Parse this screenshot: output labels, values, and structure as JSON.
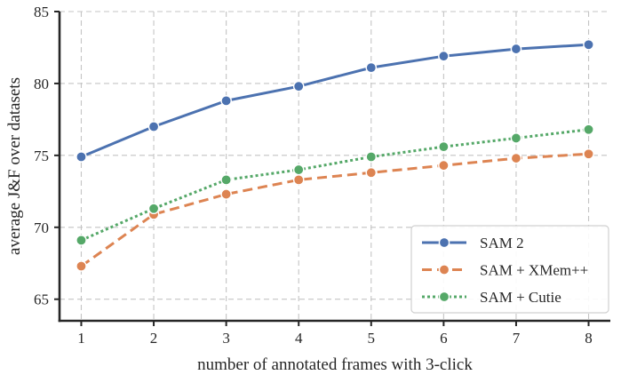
{
  "chart_data": {
    "type": "line",
    "title": "",
    "xlabel": "number of annotated frames with 3-click",
    "ylabel": "average J&F over datasets",
    "x": [
      1,
      2,
      3,
      4,
      5,
      6,
      7,
      8
    ],
    "xlim": [
      0.7,
      8.3
    ],
    "ylim": [
      63.5,
      85
    ],
    "yticks": [
      65,
      70,
      75,
      80,
      85
    ],
    "grid": true,
    "legend_position": "bottom-right",
    "series": [
      {
        "name": "SAM 2",
        "color": "#4c72b0",
        "linestyle": "solid",
        "values": [
          74.9,
          77.0,
          78.8,
          79.8,
          81.1,
          81.9,
          82.4,
          82.7
        ]
      },
      {
        "name": "SAM + XMem++",
        "color": "#dd8452",
        "linestyle": "dashed",
        "values": [
          67.3,
          70.9,
          72.3,
          73.3,
          73.8,
          74.3,
          74.8,
          75.1
        ]
      },
      {
        "name": "SAM + Cutie",
        "color": "#55a868",
        "linestyle": "dotted",
        "values": [
          69.1,
          71.3,
          73.3,
          74.0,
          74.9,
          75.6,
          76.2,
          76.8
        ]
      }
    ]
  }
}
